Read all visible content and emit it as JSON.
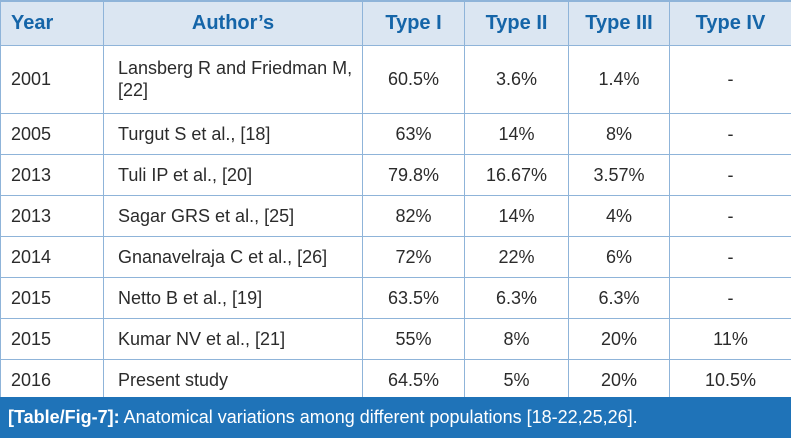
{
  "table": {
    "headers": [
      "Year",
      "Author’s",
      "Type I",
      "Type II",
      "Type III",
      "Type IV"
    ],
    "rows": [
      [
        "2001",
        "Lansberg R and Friedman M, [22]",
        "60.5%",
        "3.6%",
        "1.4%",
        "-"
      ],
      [
        "2005",
        "Turgut S et al., [18]",
        "63%",
        "14%",
        "8%",
        "-"
      ],
      [
        "2013",
        "Tuli IP et al., [20]",
        "79.8%",
        "16.67%",
        "3.57%",
        "-"
      ],
      [
        "2013",
        "Sagar GRS et al., [25]",
        "82%",
        "14%",
        "4%",
        "-"
      ],
      [
        "2014",
        "Gnanavelraja C et al., [26]",
        "72%",
        "22%",
        "6%",
        "-"
      ],
      [
        "2015",
        "Netto B et al., [19]",
        "63.5%",
        "6.3%",
        "6.3%",
        "-"
      ],
      [
        "2015",
        "Kumar NV et al., [21]",
        "55%",
        "8%",
        "20%",
        "11%"
      ],
      [
        "2016",
        "Present study",
        "64.5%",
        "5%",
        "20%",
        "10.5%"
      ]
    ]
  },
  "caption": {
    "label": "[Table/Fig-7]:",
    "text": "Anatomical variations among different populations [18-22,25,26]."
  },
  "colors": {
    "header_bg": "#dbe6f2",
    "header_text": "#1565a8",
    "border": "#8fb4d9",
    "caption_bg": "#1f73b8"
  }
}
